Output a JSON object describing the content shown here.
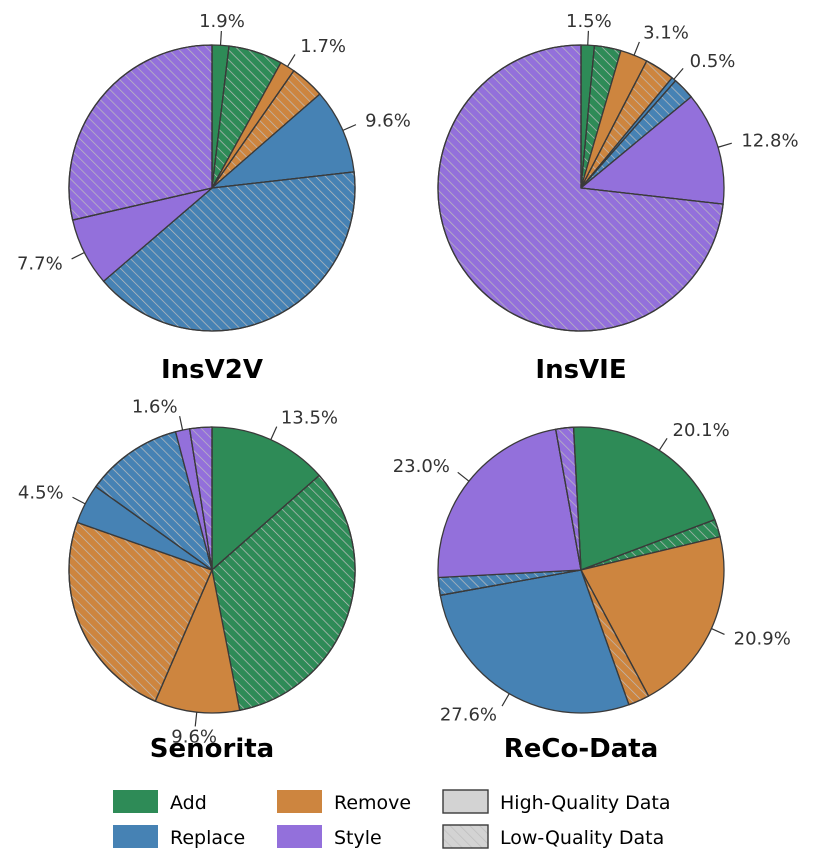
{
  "colors": {
    "Add": "#2e8b57",
    "Replace": "#4682b4",
    "Remove": "#cd853f",
    "Style": "#9370db",
    "edge": "#3a3a3a",
    "hatch": "#bdbdbd",
    "legend_neutral": "#d3d3d3"
  },
  "legend": {
    "categories": [
      "Add",
      "Replace",
      "Remove",
      "Style"
    ],
    "quality": [
      "High-Quality Data",
      "Low-Quality Data"
    ]
  },
  "chart_data": [
    {
      "type": "pie",
      "title": "InsV2V",
      "slices": [
        {
          "category": "Add",
          "quality": "high",
          "value": 1.9,
          "label": "1.9%"
        },
        {
          "category": "Add",
          "quality": "low",
          "value": 6.1,
          "label": ""
        },
        {
          "category": "Remove",
          "quality": "high",
          "value": 1.7,
          "label": "1.7%"
        },
        {
          "category": "Remove",
          "quality": "low",
          "value": 3.9,
          "label": ""
        },
        {
          "category": "Replace",
          "quality": "high",
          "value": 9.6,
          "label": "9.6%"
        },
        {
          "category": "Replace",
          "quality": "low",
          "value": 40.5,
          "label": ""
        },
        {
          "category": "Style",
          "quality": "high",
          "value": 7.7,
          "label": "7.7%"
        },
        {
          "category": "Style",
          "quality": "low",
          "value": 28.6,
          "label": ""
        }
      ]
    },
    {
      "type": "pie",
      "title": "InsVIE",
      "slices": [
        {
          "category": "Add",
          "quality": "high",
          "value": 1.5,
          "label": "1.5%"
        },
        {
          "category": "Add",
          "quality": "low",
          "value": 3.0,
          "label": ""
        },
        {
          "category": "Remove",
          "quality": "high",
          "value": 3.1,
          "label": "3.1%"
        },
        {
          "category": "Remove",
          "quality": "low",
          "value": 3.4,
          "label": ""
        },
        {
          "category": "Replace",
          "quality": "high",
          "value": 0.5,
          "label": "0.5%"
        },
        {
          "category": "Replace",
          "quality": "low",
          "value": 2.5,
          "label": ""
        },
        {
          "category": "Style",
          "quality": "high",
          "value": 12.8,
          "label": "12.8%"
        },
        {
          "category": "Style",
          "quality": "low",
          "value": 73.2,
          "label": ""
        }
      ]
    },
    {
      "type": "pie",
      "title": "Senorita",
      "slices": [
        {
          "category": "Add",
          "quality": "high",
          "value": 13.5,
          "label": "13.5%"
        },
        {
          "category": "Add",
          "quality": "low",
          "value": 33.4,
          "label": ""
        },
        {
          "category": "Remove",
          "quality": "high",
          "value": 9.6,
          "label": "9.6%"
        },
        {
          "category": "Remove",
          "quality": "low",
          "value": 23.9,
          "label": ""
        },
        {
          "category": "Replace",
          "quality": "high",
          "value": 4.5,
          "label": "4.5%"
        },
        {
          "category": "Replace",
          "quality": "low",
          "value": 11.0,
          "label": ""
        },
        {
          "category": "Style",
          "quality": "high",
          "value": 1.6,
          "label": "1.6%"
        },
        {
          "category": "Style",
          "quality": "low",
          "value": 2.5,
          "label": ""
        }
      ]
    },
    {
      "type": "pie",
      "title": "ReCo-Data",
      "slices": [
        {
          "category": "Add",
          "quality": "high",
          "value": 20.1,
          "label": "20.1%"
        },
        {
          "category": "Add",
          "quality": "low",
          "value": 2.0,
          "label": ""
        },
        {
          "category": "Remove",
          "quality": "high",
          "value": 20.9,
          "label": "20.9%"
        },
        {
          "category": "Remove",
          "quality": "low",
          "value": 2.4,
          "label": ""
        },
        {
          "category": "Replace",
          "quality": "high",
          "value": 27.6,
          "label": "27.6%"
        },
        {
          "category": "Replace",
          "quality": "low",
          "value": 2.0,
          "label": ""
        },
        {
          "category": "Style",
          "quality": "high",
          "value": 23.0,
          "label": "23.0%"
        },
        {
          "category": "Style",
          "quality": "low",
          "value": 2.0,
          "label": ""
        }
      ]
    }
  ]
}
